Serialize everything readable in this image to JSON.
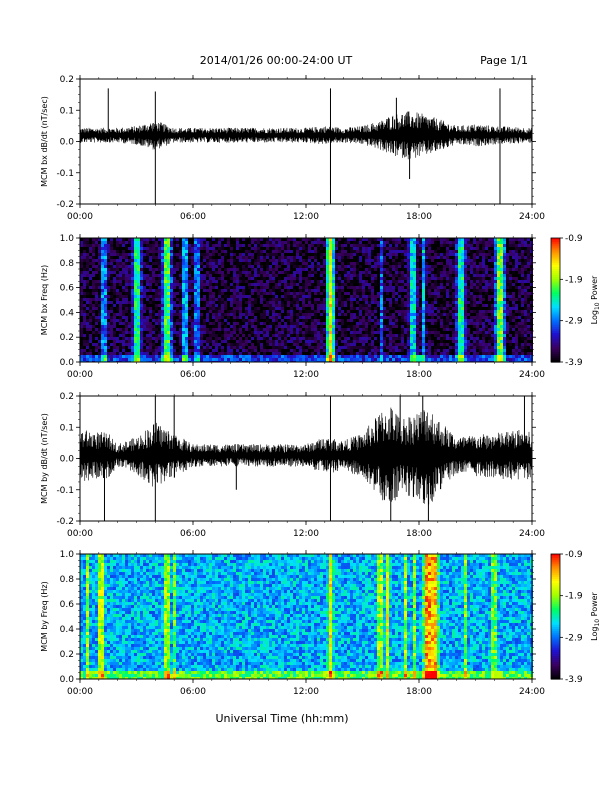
{
  "header": {
    "date_range": "2014/01/26  00:00-24:00 UT",
    "page": "Page 1/1"
  },
  "x_axis": {
    "label": "Universal Time (hh:mm)",
    "ticks": [
      "00:00",
      "06:00",
      "12:00",
      "18:00",
      "24:00"
    ]
  },
  "colorbar": {
    "label_prefix": "Log",
    "label_sub": "10",
    "label_suffix": " Power",
    "ticks": [
      "-0.9",
      "-1.9",
      "-2.9",
      "-3.9"
    ],
    "colors": [
      "#000000",
      "#3a0060",
      "#2010d0",
      "#0070ff",
      "#00e0ff",
      "#00ff60",
      "#a0ff00",
      "#ffff00",
      "#ff9000",
      "#ff0000"
    ]
  },
  "chart_data": [
    {
      "type": "line",
      "ylabel": "MCM bx dB/dt (nT/sec)",
      "xlim": [
        0,
        24
      ],
      "ylim": [
        -0.2,
        0.2
      ],
      "yticks": [
        "0.2",
        "0.1",
        "0.0",
        "-0.1",
        "-0.2"
      ],
      "baseline": 0.02,
      "activity": [
        [
          0,
          0.02
        ],
        [
          2,
          0.02
        ],
        [
          3,
          0.025
        ],
        [
          4,
          0.04
        ],
        [
          5,
          0.02
        ],
        [
          8,
          0.02
        ],
        [
          12,
          0.02
        ],
        [
          13,
          0.025
        ],
        [
          14,
          0.02
        ],
        [
          15,
          0.025
        ],
        [
          16,
          0.04
        ],
        [
          16.5,
          0.055
        ],
        [
          17,
          0.06
        ],
        [
          17.5,
          0.065
        ],
        [
          18,
          0.06
        ],
        [
          19,
          0.045
        ],
        [
          20,
          0.025
        ],
        [
          21,
          0.03
        ],
        [
          22,
          0.025
        ],
        [
          24,
          0.02
        ]
      ],
      "spikes": [
        [
          1.5,
          0.17
        ],
        [
          4.0,
          0.16
        ],
        [
          4.0,
          -0.2
        ],
        [
          13.3,
          0.17
        ],
        [
          13.3,
          -0.14
        ],
        [
          13.3,
          -0.2
        ],
        [
          16.8,
          0.14
        ],
        [
          17.5,
          -0.12
        ],
        [
          22.3,
          0.17
        ],
        [
          22.3,
          -0.2
        ]
      ]
    },
    {
      "type": "heatmap",
      "ylabel": "MCM bx Freq (Hz)",
      "xlim": [
        0,
        24
      ],
      "ylim": [
        0.0,
        1.0
      ],
      "yticks": [
        "1.0",
        "0.8",
        "0.6",
        "0.4",
        "0.2",
        "0.0"
      ],
      "zlim": [
        -3.9,
        -0.9
      ],
      "background": -3.7,
      "streaks": [
        [
          1.3,
          -2.9
        ],
        [
          3.0,
          -2.4
        ],
        [
          4.6,
          -2.2
        ],
        [
          5.6,
          -2.8
        ],
        [
          6.2,
          -3.0
        ],
        [
          13.3,
          -1.6
        ],
        [
          16.0,
          -3.0
        ],
        [
          17.7,
          -2.6
        ],
        [
          18.2,
          -2.7
        ],
        [
          20.2,
          -2.4
        ],
        [
          22.3,
          -2.1
        ]
      ],
      "lowband_hot": [
        [
          13.3,
          -1.2
        ],
        [
          22.3,
          -1.8
        ],
        [
          18.0,
          -2.4
        ]
      ]
    },
    {
      "type": "line",
      "ylabel": "MCM by dB/dt (nT/sec)",
      "xlim": [
        0,
        24
      ],
      "ylim": [
        -0.2,
        0.2
      ],
      "yticks": [
        "0.2",
        "0.1",
        "0.0",
        "-0.1",
        "-0.2"
      ],
      "baseline": 0.01,
      "activity": [
        [
          0,
          0.07
        ],
        [
          1.5,
          0.06
        ],
        [
          2,
          0.03
        ],
        [
          3,
          0.05
        ],
        [
          4,
          0.09
        ],
        [
          5,
          0.06
        ],
        [
          6,
          0.03
        ],
        [
          9,
          0.03
        ],
        [
          12,
          0.03
        ],
        [
          13,
          0.05
        ],
        [
          14,
          0.04
        ],
        [
          15,
          0.06
        ],
        [
          16,
          0.12
        ],
        [
          16.5,
          0.14
        ],
        [
          17,
          0.1
        ],
        [
          18,
          0.12
        ],
        [
          18.5,
          0.14
        ],
        [
          19,
          0.1
        ],
        [
          20,
          0.05
        ],
        [
          22,
          0.06
        ],
        [
          23.5,
          0.07
        ],
        [
          24,
          0.06
        ]
      ],
      "spikes": [
        [
          1.3,
          -0.2
        ],
        [
          4.0,
          0.2
        ],
        [
          4.0,
          -0.2
        ],
        [
          5.0,
          0.2
        ],
        [
          8.3,
          -0.1
        ],
        [
          13.3,
          0.2
        ],
        [
          13.3,
          -0.2
        ],
        [
          16.5,
          -0.2
        ],
        [
          17.0,
          0.2
        ],
        [
          18.2,
          0.2
        ],
        [
          18.5,
          -0.2
        ],
        [
          23.6,
          0.2
        ]
      ]
    },
    {
      "type": "heatmap",
      "ylabel": "MCM by Freq (Hz)",
      "xlim": [
        0,
        24
      ],
      "ylim": [
        0.0,
        1.0
      ],
      "yticks": [
        "1.0",
        "0.8",
        "0.6",
        "0.4",
        "0.2",
        "0.0"
      ],
      "zlim": [
        -3.9,
        -0.9
      ],
      "background": -2.7,
      "streaks": [
        [
          0.4,
          -1.9
        ],
        [
          1.1,
          -1.8
        ],
        [
          4.6,
          -1.9
        ],
        [
          5.0,
          -2.1
        ],
        [
          13.3,
          -1.6
        ],
        [
          15.9,
          -1.9
        ],
        [
          16.3,
          -1.7
        ],
        [
          17.3,
          -1.9
        ],
        [
          17.8,
          -2.0
        ],
        [
          18.5,
          -1.3
        ],
        [
          18.8,
          -1.4
        ],
        [
          20.5,
          -2.0
        ],
        [
          22.0,
          -2.1
        ]
      ],
      "lowband_hot": [
        [
          13.3,
          -1.4
        ],
        [
          22.3,
          -1.8
        ]
      ]
    }
  ]
}
